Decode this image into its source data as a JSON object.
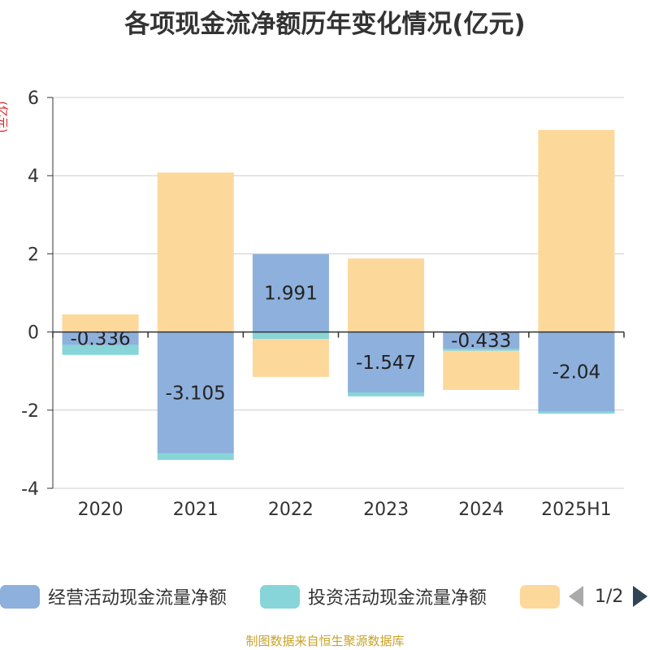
{
  "title": "各项现金流净额历年变化情况(亿元)",
  "footer": "制图数据来自恒生聚源数据库",
  "chart_data": {
    "type": "bar",
    "stacked": true,
    "title": "各项现金流净额历年变化情况(亿元)",
    "ylabel": "(亿元)",
    "xlabel": "",
    "categories": [
      "2020",
      "2021",
      "2022",
      "2023",
      "2024",
      "2025H1"
    ],
    "ylim": [
      -4,
      6
    ],
    "yticks": [
      -4,
      -2,
      0,
      2,
      4,
      6
    ],
    "grid": true,
    "legend_position": "bottom",
    "series": [
      {
        "name": "经营活动现金流量净额",
        "color": "#8eb0dc",
        "values": [
          -0.336,
          -3.105,
          1.991,
          -1.547,
          -0.433,
          -2.04
        ],
        "show_labels": true
      },
      {
        "name": "投资活动现金流量净额",
        "color": "#87d5d8",
        "values": [
          -0.25,
          -0.17,
          -0.18,
          -0.1,
          -0.05,
          -0.05
        ],
        "show_labels": false
      },
      {
        "name": "",
        "color": "#fdd89b",
        "values": [
          0.45,
          4.08,
          -0.97,
          1.88,
          -1.0,
          5.17
        ],
        "show_labels": false
      }
    ]
  },
  "legend": {
    "items": [
      {
        "label": "经营活动现金流量净额",
        "color": "#8eb0dc"
      },
      {
        "label": "投资活动现金流量净额",
        "color": "#87d5d8"
      },
      {
        "label": "",
        "color": "#fdd89b"
      }
    ],
    "page_text": "1/2"
  }
}
